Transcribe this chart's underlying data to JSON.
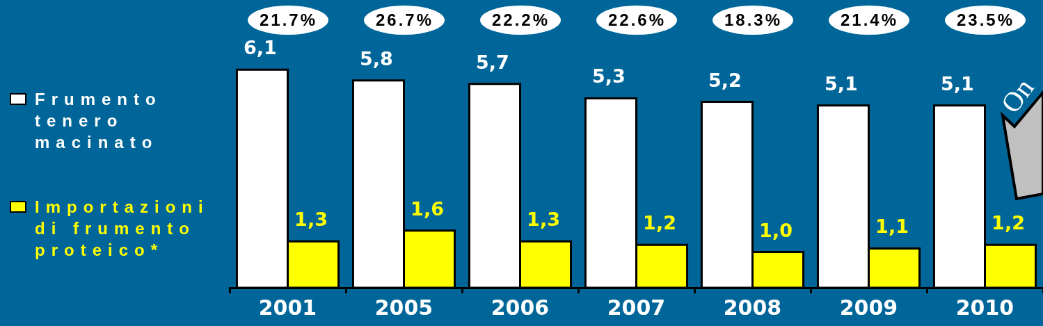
{
  "chart_data": {
    "type": "bar",
    "categories": [
      "2001",
      "2005",
      "2006",
      "2007",
      "2008",
      "2009",
      "2010"
    ],
    "series": [
      {
        "name": "Frumento tenero macinato",
        "color": "#ffffff",
        "values": [
          6.1,
          5.8,
          5.7,
          5.3,
          5.2,
          5.1,
          5.1
        ],
        "value_labels": [
          "6,1",
          "5,8",
          "5,7",
          "5,3",
          "5,2",
          "5,1",
          "5,1"
        ]
      },
      {
        "name": "Importazioni di frumento proteico*",
        "color": "#ffff00",
        "values": [
          1.3,
          1.6,
          1.3,
          1.2,
          1.0,
          1.1,
          1.2
        ],
        "value_labels": [
          "1,3",
          "1,6",
          "1,3",
          "1,2",
          "1,0",
          "1,1",
          "1,2"
        ]
      }
    ],
    "annotations": [
      "21.7%",
      "26.7%",
      "22.2%",
      "22.6%",
      "18.3%",
      "21.4%",
      "23.5%",
      "On"
    ],
    "legend": "left"
  }
}
